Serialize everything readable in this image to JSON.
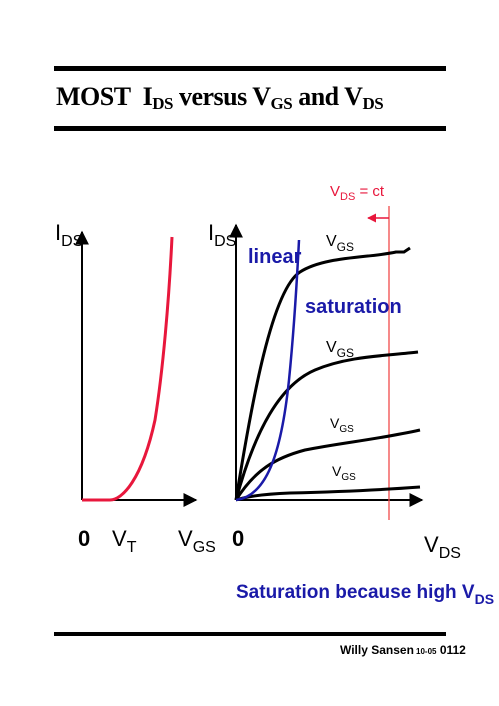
{
  "title": {
    "prefix": "MOST",
    "i": "I",
    "ds_sub": "DS",
    "mid": " versus V",
    "gs_sub": "GS",
    "and": " and V",
    "ds_sub2": "DS"
  },
  "left_plot": {
    "y_label": "I",
    "y_label_sub": "DS",
    "x_origin": "0",
    "x_vt": "V",
    "x_vt_sub": "T",
    "x_label": "V",
    "x_label_sub": "GS"
  },
  "right_plot": {
    "y_label": "I",
    "y_label_sub": "DS",
    "x_origin": "0",
    "x_label": "V",
    "x_label_sub": "DS",
    "linear_label": "linear",
    "saturation_label": "saturation",
    "curve_label": "V",
    "curve_label_sub": "GS",
    "vds_ct_v": "V",
    "vds_ct_sub": "DS",
    "vds_ct_rest": " = ct"
  },
  "caption": {
    "text": "Saturation because high V",
    "sub": "DS"
  },
  "footer": {
    "author": "Willy Sansen",
    "code_small": "10-05",
    "code_big": "0112"
  },
  "colors": {
    "red": "#e8173c",
    "blue": "#1a1aa8",
    "pink": "#f04a4a",
    "black": "#000000"
  }
}
